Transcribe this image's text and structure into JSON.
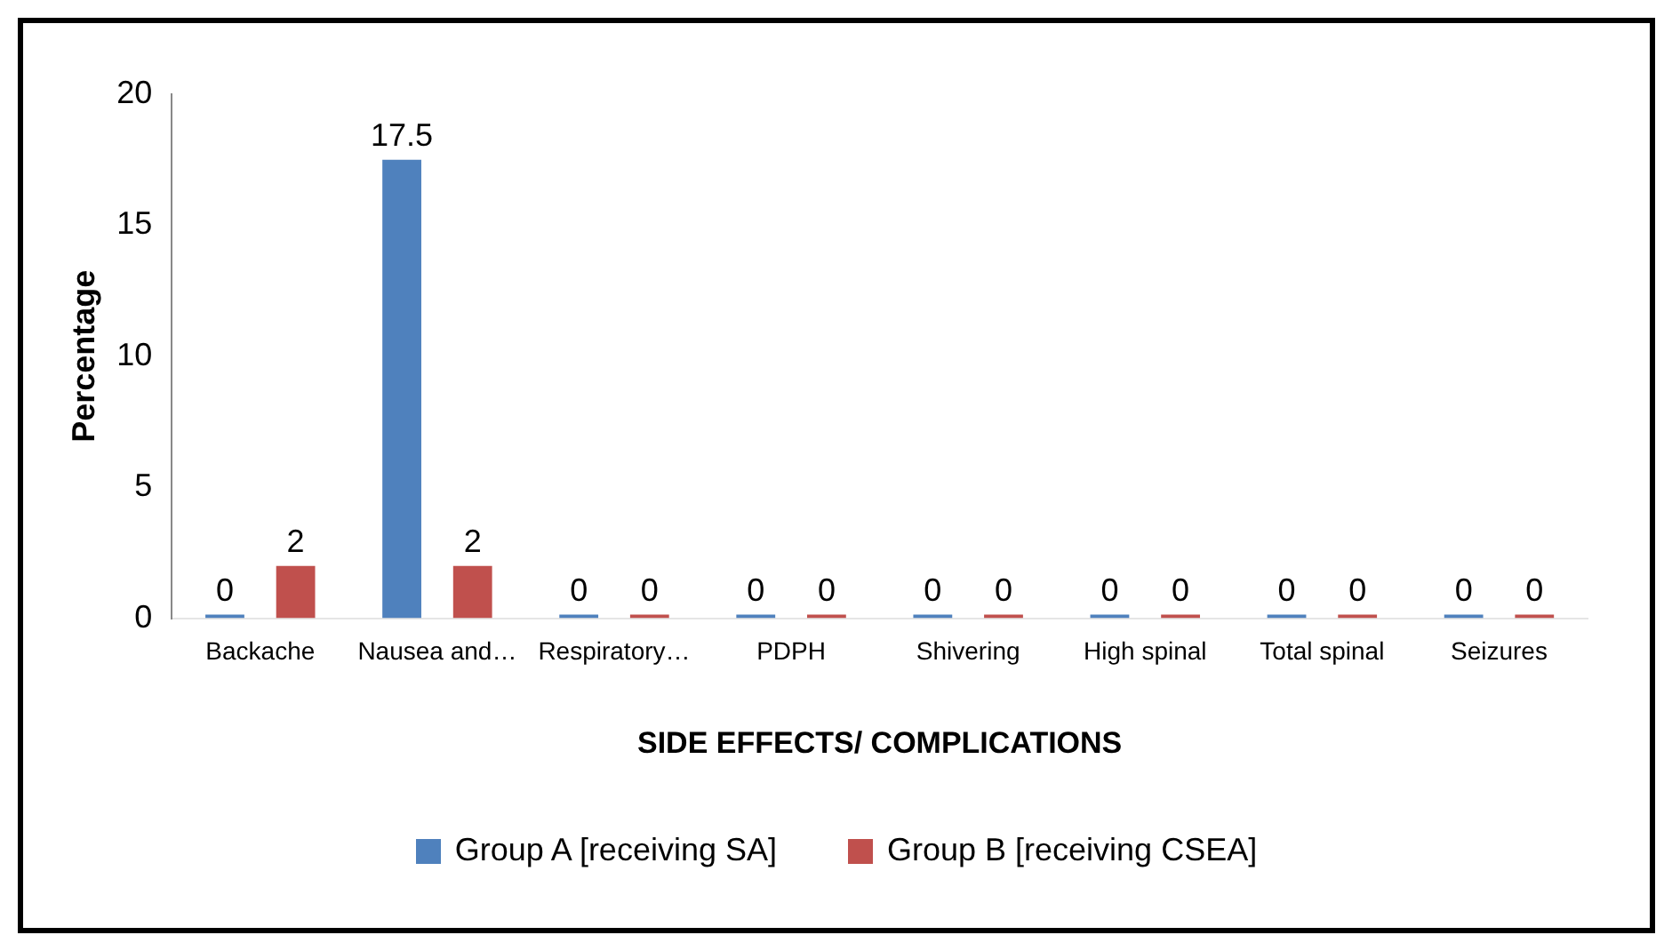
{
  "chart_data": {
    "type": "bar",
    "xlabel": "SIDE EFFECTS/ COMPLICATIONS",
    "ylabel": "Percentage",
    "categories": [
      "Backache",
      "Nausea and…",
      "Respiratory…",
      "PDPH",
      "Shivering",
      "High spinal",
      "Total spinal",
      "Seizures"
    ],
    "series": [
      {
        "name": "Group A [receiving SA]",
        "color": "#4f81bd",
        "values": [
          0,
          17.5,
          0,
          0,
          0,
          0,
          0,
          0
        ]
      },
      {
        "name": "Group B [receiving CSEA]",
        "color": "#c0504d",
        "values": [
          2,
          2,
          0,
          0,
          0,
          0,
          0,
          0
        ]
      }
    ],
    "ylim": [
      0,
      20
    ],
    "yticks": [
      0,
      5,
      10,
      15,
      20
    ],
    "grid": false,
    "legend": "bottom",
    "data_labels": true
  }
}
